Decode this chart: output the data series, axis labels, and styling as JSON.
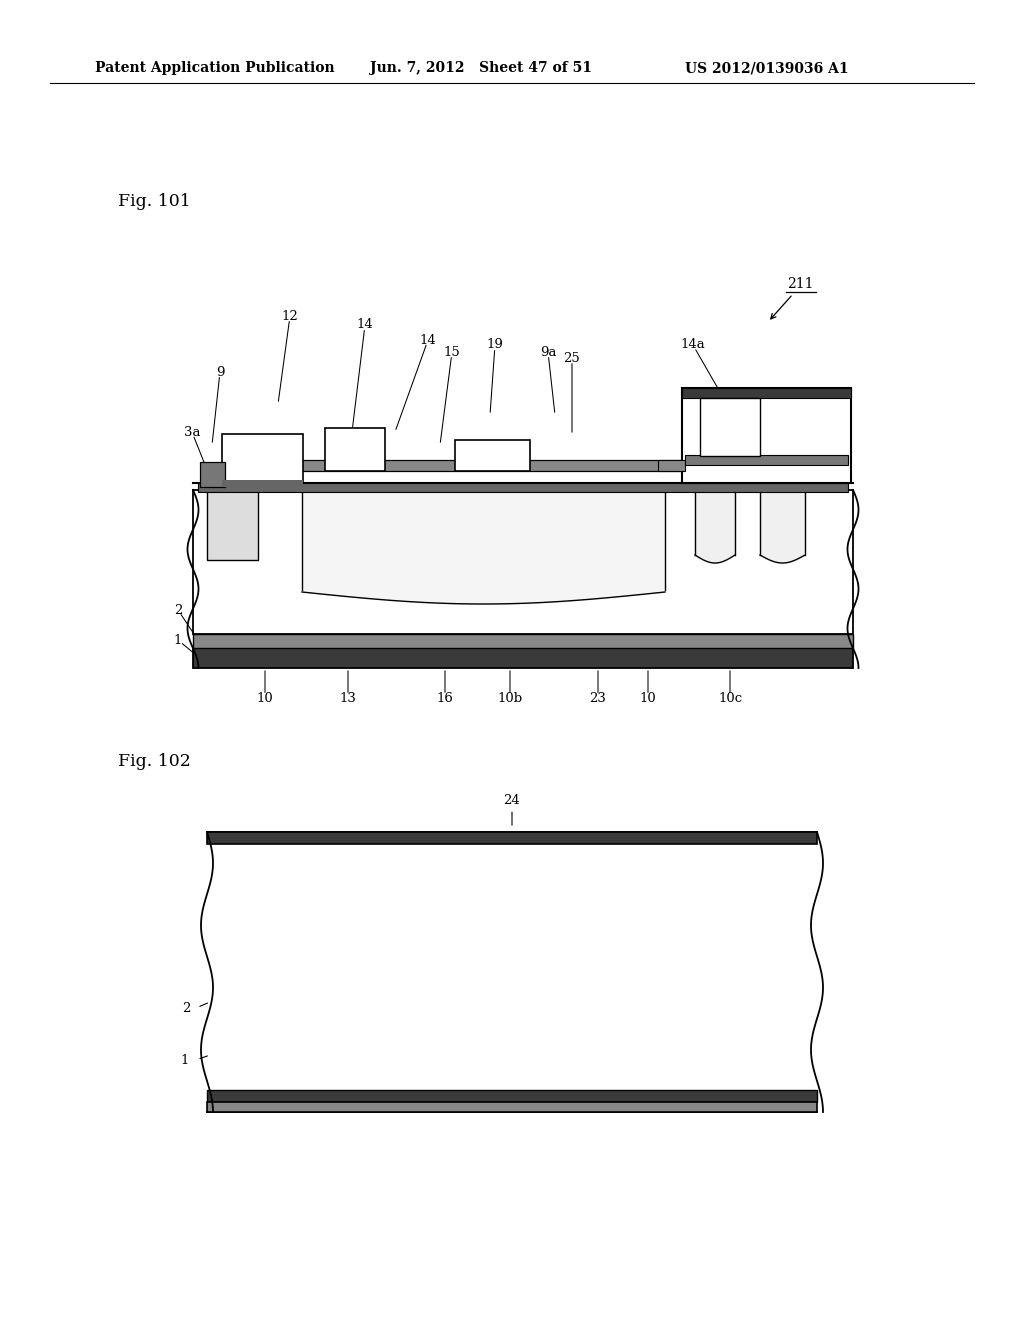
{
  "bg_color": "#ffffff",
  "header_left": "Patent Application Publication",
  "header_mid": "Jun. 7, 2012   Sheet 47 of 51",
  "header_right": "US 2012/0139036 A1",
  "fig101_label": "Fig. 101",
  "fig102_label": "Fig. 102",
  "line_color": "#000000",
  "dark_fill": "#3a3a3a",
  "mid_fill": "#888888",
  "light_fill": "#dddddd",
  "white_fill": "#ffffff"
}
